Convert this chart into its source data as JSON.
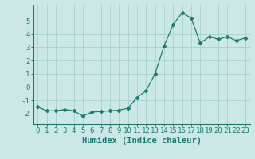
{
  "x": [
    0,
    1,
    2,
    3,
    4,
    5,
    6,
    7,
    8,
    9,
    10,
    11,
    12,
    13,
    14,
    15,
    16,
    17,
    18,
    19,
    20,
    21,
    22,
    23
  ],
  "y": [
    -1.5,
    -1.8,
    -1.8,
    -1.7,
    -1.8,
    -2.2,
    -1.9,
    -1.85,
    -1.8,
    -1.75,
    -1.6,
    -0.8,
    -0.3,
    1.0,
    3.1,
    4.7,
    5.6,
    5.2,
    3.3,
    3.8,
    3.6,
    3.8,
    3.5,
    3.7
  ],
  "xlabel": "Humidex (Indice chaleur)",
  "ylim": [
    -2.8,
    6.2
  ],
  "xlim": [
    -0.5,
    23.5
  ],
  "yticks": [
    -2,
    -1,
    0,
    1,
    2,
    3,
    4,
    5
  ],
  "xticks": [
    0,
    1,
    2,
    3,
    4,
    5,
    6,
    7,
    8,
    9,
    10,
    11,
    12,
    13,
    14,
    15,
    16,
    17,
    18,
    19,
    20,
    21,
    22,
    23
  ],
  "line_color": "#1a7a6e",
  "marker": "D",
  "marker_size": 2.5,
  "bg_color": "#cce8e6",
  "grid_color": "#aad4d0",
  "tick_label_fontsize": 6.5,
  "xlabel_fontsize": 7.5
}
